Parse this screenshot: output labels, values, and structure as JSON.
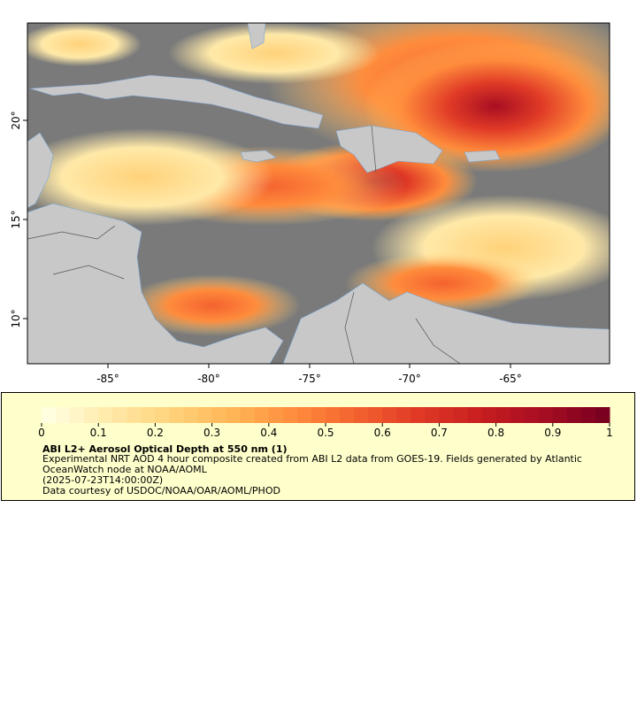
{
  "map": {
    "x_ticks": [
      "-85°",
      "-80°",
      "-75°",
      "-70°",
      "-65°"
    ],
    "y_ticks": [
      "20°",
      "15°",
      "10°"
    ],
    "colors": {
      "ocean_nodata": "#7a7a7a",
      "land": "#c8c8c8",
      "rivers": "#7aa6d6",
      "borders": "#555555"
    }
  },
  "legend": {
    "ticks": [
      "0",
      "0.1",
      "0.2",
      "0.3",
      "0.4",
      "0.5",
      "0.6",
      "0.7",
      "0.8",
      "0.9",
      "1"
    ],
    "scale_min": 0,
    "scale_max": 1,
    "colormap": [
      "#ffffe0",
      "#ffe9a8",
      "#ffd27a",
      "#ffb455",
      "#ff8c3c",
      "#f4622f",
      "#e03a26",
      "#c81e20",
      "#a80e22",
      "#7a0020"
    ],
    "title": "ABI L2+ Aerosol Optical Depth at 550 nm (1)",
    "desc": "Experimental NRT AOD 4 hour composite created from ABI L2 data from GOES-19. Fields generated by Atlantic OceanWatch node at NOAA/AOML",
    "timestamp": "(2025-07-23T14:00:00Z)",
    "credit": "Data courtesy of USDOC/NOAA/OAR/AOML/PHOD"
  }
}
